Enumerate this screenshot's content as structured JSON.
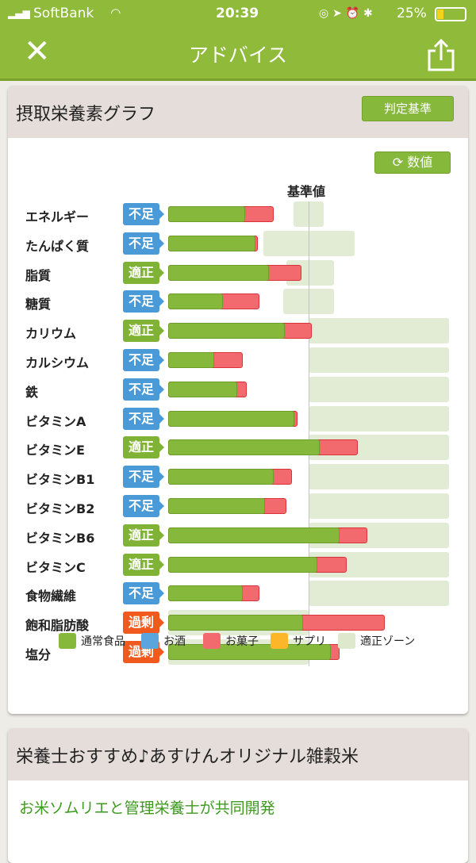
{
  "status_bar": {
    "carrier": "SoftBank",
    "time": "20:39",
    "battery": "25%"
  },
  "header": {
    "title": "アドバイス"
  },
  "graph_card": {
    "title": "摂取栄養素グラフ",
    "criteria_button": "判定基準",
    "values_button": "数値",
    "reference_label": "基準値"
  },
  "colors": {
    "normal_food": "#86b83c",
    "alcohol": "#5aa5dc",
    "snack": "#f26a6e",
    "supplement": "#fbb62a",
    "zone": "#dde8cc",
    "badge_low": "#4a9ad8",
    "badge_ok": "#7fb235",
    "badge_over": "#f05a1e"
  },
  "chart_data": {
    "type": "bar",
    "stacked": true,
    "orientation": "horizontal",
    "unit_note": "percent of 基準値 (estimated)",
    "categories": [
      "エネルギー",
      "たんぱく質",
      "脂質",
      "糖質",
      "カリウム",
      "カルシウム",
      "鉄",
      "ビタミンA",
      "ビタミンE",
      "ビタミンB1",
      "ビタミンB2",
      "ビタミンB6",
      "ビタミンC",
      "食物繊維",
      "飽和脂肪酸",
      "塩分"
    ],
    "status": [
      "不足",
      "不足",
      "適正",
      "不足",
      "適正",
      "不足",
      "不足",
      "不足",
      "適正",
      "不足",
      "不足",
      "適正",
      "適正",
      "不足",
      "過剰",
      "過剰"
    ],
    "series": [
      {
        "name": "通常食品",
        "values": [
          55,
          62,
          72,
          39,
          83,
          33,
          49,
          90,
          108,
          75,
          69,
          122,
          106,
          53,
          96,
          116
        ]
      },
      {
        "name": "お菓子",
        "values": [
          20,
          2,
          23,
          26,
          19,
          20,
          7,
          2,
          27,
          13,
          15,
          20,
          21,
          12,
          58,
          6
        ]
      }
    ],
    "zones": [
      [
        89,
        111
      ],
      [
        68,
        133
      ],
      [
        84,
        118
      ],
      [
        82,
        118
      ],
      [
        100,
        200
      ],
      [
        100,
        200
      ],
      [
        100,
        200
      ],
      [
        100,
        200
      ],
      [
        100,
        200
      ],
      [
        100,
        200
      ],
      [
        100,
        200
      ],
      [
        100,
        200
      ],
      [
        100,
        200
      ],
      [
        100,
        200
      ],
      [
        0,
        100
      ],
      [
        0,
        100
      ]
    ],
    "reference": 100,
    "legend": [
      "通常食品",
      "お酒",
      "お菓子",
      "サプリ",
      "適正ゾーン"
    ]
  },
  "rec_card": {
    "title": "栄養士おすすめ♪あすけんオリジナル雑穀米",
    "subtitle": "お米ソムリエと管理栄養士が共同開発"
  }
}
